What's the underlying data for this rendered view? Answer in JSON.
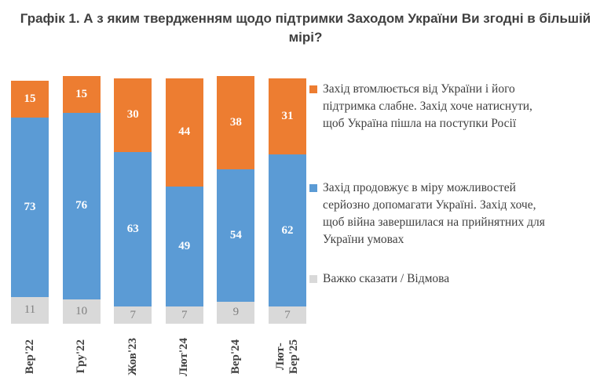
{
  "title": "Графік 1. А з яким твердженням щодо підтримки Заходом України Ви згодні в більшій\nмірі?",
  "colors": {
    "orange": "#ed7d31",
    "blue": "#5b9bd5",
    "gray": "#d9d9d9",
    "text_dark": "#404040",
    "gray_value_label": "#808080"
  },
  "legend": {
    "position": "right",
    "items": [
      {
        "label": "Захід втомлюється від України і його\nпідтримка слабне. Захід хоче натиснути,\nщоб Україна пішла на поступки Росії",
        "color": "#ed7d31",
        "marker": "orange-square-icon"
      },
      {
        "label": "Захід продовжує в міру можливостей\nсерйозно допомагати Україні. Захід хоче,\nщоб війна завершилася на прийнятних для\nУкраїни умовах",
        "color": "#5b9bd5",
        "marker": "blue-square-icon"
      },
      {
        "label": "Важко сказати / Відмова",
        "color": "#d9d9d9",
        "marker": "gray-square-icon"
      }
    ]
  },
  "chart_data": {
    "type": "bar",
    "stacked": true,
    "title": "Графік 1. А з яким твердженням щодо підтримки Заходом України Ви згодні в більшій мірі?",
    "categories": [
      "Вер'22",
      "Гру'22",
      "Жов'23",
      "Лют'24",
      "Вер'24",
      "Лют-\nБер'25"
    ],
    "series": [
      {
        "name": "Важко сказати / Відмова",
        "color": "#d9d9d9",
        "label_color": "#808080",
        "label_bold": false,
        "values": [
          11,
          10,
          7,
          7,
          9,
          7
        ]
      },
      {
        "name": "Захід продовжує в міру можливостей серйозно допомагати Україні. Захід хоче, щоб війна завершилася на прийнятних для України умовах",
        "color": "#5b9bd5",
        "label_color": "#ffffff",
        "label_bold": true,
        "values": [
          73,
          76,
          63,
          49,
          54,
          62
        ]
      },
      {
        "name": "Захід втомлюється від України і його підтримка слабне. Захід хоче натиснути, щоб Україна пішла на поступки Росії",
        "color": "#ed7d31",
        "label_color": "#ffffff",
        "label_bold": true,
        "values": [
          15,
          15,
          30,
          44,
          38,
          31
        ]
      }
    ],
    "xlabel": "",
    "ylabel": "",
    "ylim": [
      0,
      100
    ],
    "grid": false,
    "legend_position": "right",
    "data_labels": true
  }
}
